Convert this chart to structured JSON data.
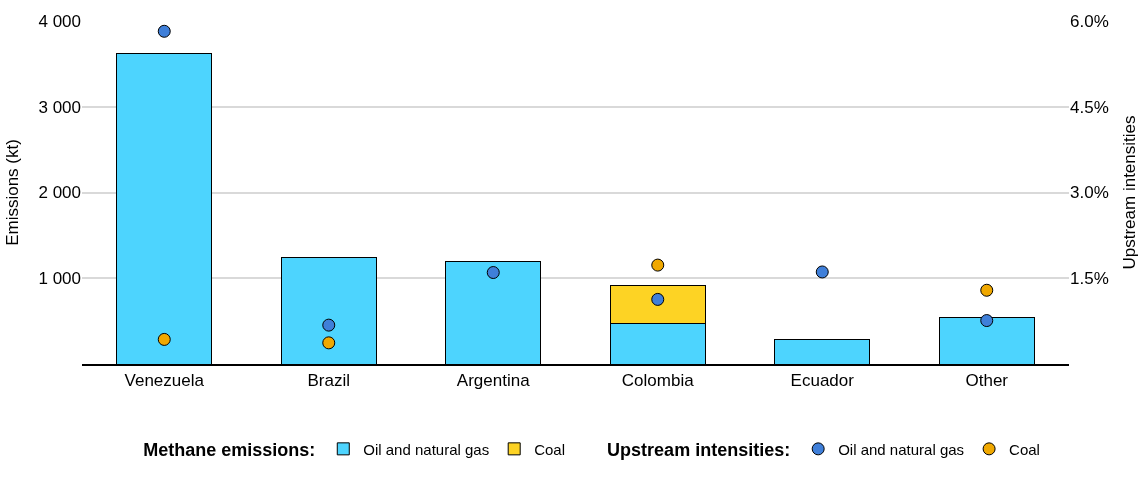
{
  "chart_data": {
    "type": "bar",
    "stacked": true,
    "categories": [
      "Venezuela",
      "Brazil",
      "Argentina",
      "Colombia",
      "Ecuador",
      "Other"
    ],
    "ylabel": "Emissions (kt)",
    "y2label": "Upstream intensities",
    "legend_title": [
      "Methane emissions:",
      "Upstream intensities:"
    ],
    "series": [
      {
        "name": "Oil and natural gas",
        "color": "#4dd4fe",
        "values": [
          3620,
          1240,
          1190,
          470,
          290,
          540
        ]
      },
      {
        "name": "Coal",
        "color": "#fdd324",
        "values": [
          null,
          null,
          null,
          450,
          null,
          null
        ]
      },
      {
        "name": "Oil and natural gas",
        "type": "scatter",
        "axis": "y2",
        "color": "#3f7fd9",
        "values": [
          5.82,
          0.68,
          1.6,
          1.13,
          1.61,
          0.76
        ]
      },
      {
        "name": "Coal",
        "type": "scatter",
        "axis": "y2",
        "color": "#f0a800",
        "values": [
          0.43,
          0.37,
          null,
          1.73,
          null,
          1.29
        ]
      }
    ],
    "ylim": [
      0,
      4000
    ],
    "yticks": [
      {
        "value": 1000,
        "label": "1 000"
      },
      {
        "value": 2000,
        "label": "2 000"
      },
      {
        "value": 3000,
        "label": "3 000"
      },
      {
        "value": 4000,
        "label": "4 000"
      }
    ],
    "y2lim": [
      0,
      6
    ],
    "y2ticks": [
      {
        "value": 1.5,
        "label": "1.5%"
      },
      {
        "value": 3,
        "label": "3.0%"
      },
      {
        "value": 4.5,
        "label": "4.5%"
      },
      {
        "value": 6,
        "label": "6.0%"
      }
    ],
    "grid": "y",
    "legend": "bottom",
    "marker": "circle"
  }
}
